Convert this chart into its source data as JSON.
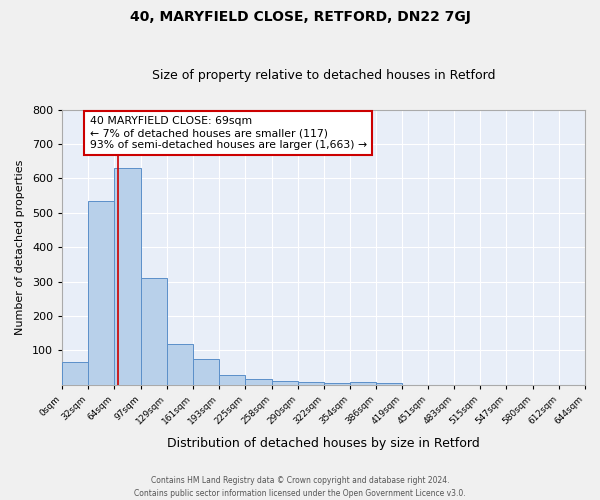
{
  "title": "40, MARYFIELD CLOSE, RETFORD, DN22 7GJ",
  "subtitle": "Size of property relative to detached houses in Retford",
  "xlabel": "Distribution of detached houses by size in Retford",
  "ylabel": "Number of detached properties",
  "bar_edges": [
    0,
    32,
    64,
    97,
    129,
    161,
    193,
    225,
    258,
    290,
    322,
    354,
    386,
    419,
    451,
    483,
    515,
    547,
    580,
    612,
    644
  ],
  "bar_heights": [
    65,
    535,
    630,
    310,
    118,
    75,
    28,
    16,
    10,
    7,
    5,
    9,
    6,
    0,
    0,
    0,
    0,
    0,
    0,
    0
  ],
  "bar_color": "#b8d0ea",
  "bar_edge_color": "#5b8fc9",
  "property_line_x": 69,
  "property_line_color": "#cc0000",
  "annotation_text": "40 MARYFIELD CLOSE: 69sqm\n← 7% of detached houses are smaller (117)\n93% of semi-detached houses are larger (1,663) →",
  "annotation_box_color": "#ffffff",
  "annotation_box_edge": "#cc0000",
  "ylim": [
    0,
    800
  ],
  "yticks": [
    0,
    100,
    200,
    300,
    400,
    500,
    600,
    700,
    800
  ],
  "bg_color": "#e8eef8",
  "grid_color": "#ffffff",
  "footer_line1": "Contains HM Land Registry data © Crown copyright and database right 2024.",
  "footer_line2": "Contains public sector information licensed under the Open Government Licence v3.0.",
  "tick_labels": [
    "0sqm",
    "32sqm",
    "64sqm",
    "97sqm",
    "129sqm",
    "161sqm",
    "193sqm",
    "225sqm",
    "258sqm",
    "290sqm",
    "322sqm",
    "354sqm",
    "386sqm",
    "419sqm",
    "451sqm",
    "483sqm",
    "515sqm",
    "547sqm",
    "580sqm",
    "612sqm",
    "644sqm"
  ],
  "fig_width": 6.0,
  "fig_height": 5.0,
  "fig_dpi": 100
}
